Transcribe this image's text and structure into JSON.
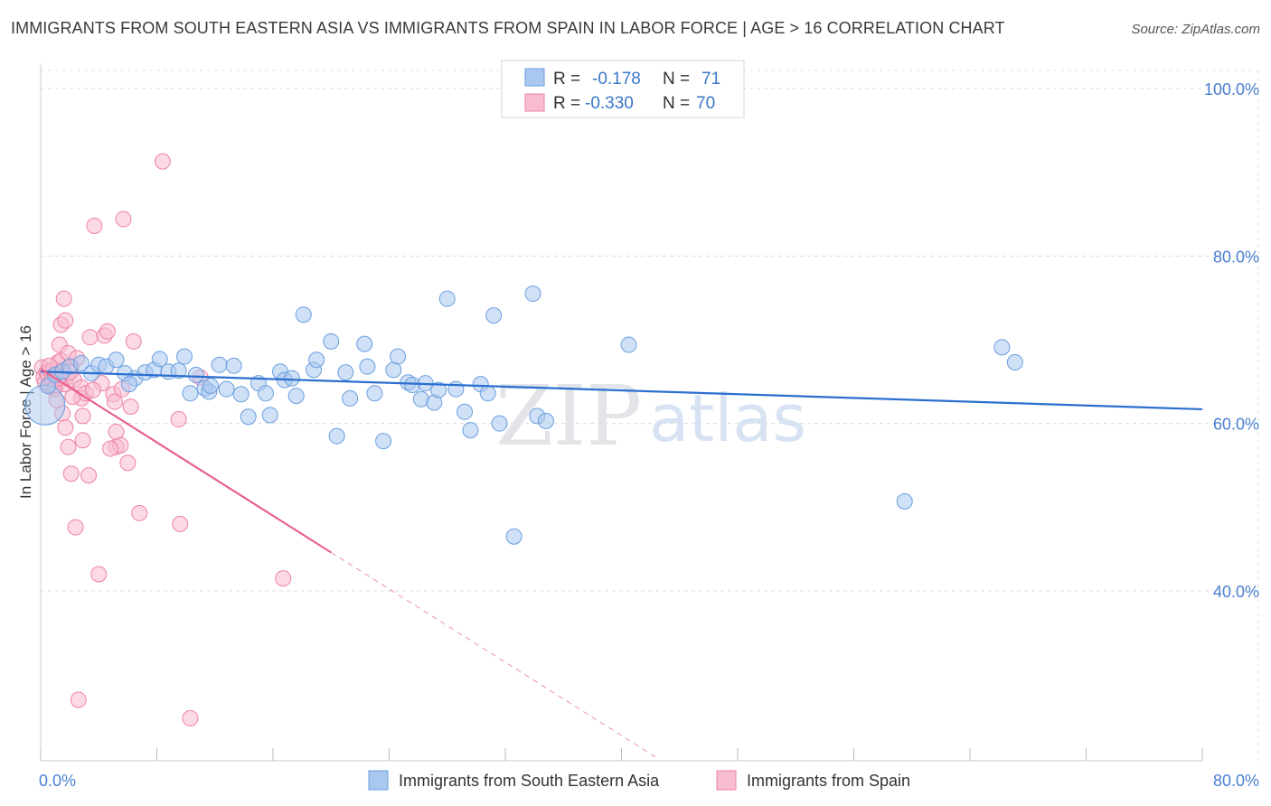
{
  "header": {
    "title": "IMMIGRANTS FROM SOUTH EASTERN ASIA VS IMMIGRANTS FROM SPAIN IN LABOR FORCE | AGE > 16 CORRELATION CHART",
    "source": "Source: ZipAtlas.com"
  },
  "watermark": {
    "zip": "ZIP",
    "atlas": "atlas"
  },
  "legend": {
    "r_label": "R =",
    "n_label": "N =",
    "series1": {
      "r": "-0.178",
      "n": "71"
    },
    "series2": {
      "r": "-0.330",
      "n": "70"
    }
  },
  "colors": {
    "series1_fill": "#aac7ef",
    "series1_stroke": "#6a9fdf",
    "series1_line": "#2b6fcf",
    "series2_fill": "#f7bcd0",
    "series2_stroke": "#ee82a6",
    "series2_line": "#e8618e",
    "grid": "#dcdcdc",
    "tick_label": "#4a7fd0"
  },
  "chart_data": {
    "type": "scatter",
    "title": "IMMIGRANTS FROM SOUTH EASTERN ASIA VS IMMIGRANTS FROM SPAIN IN LABOR FORCE | AGE > 16 CORRELATION CHART",
    "xlabel": "",
    "ylabel": "In Labor Force | Age > 16",
    "xlim": [
      0,
      80
    ],
    "ylim": [
      20,
      102
    ],
    "x_tick_labels": [
      "0.0%",
      "80.0%"
    ],
    "y_ticks": [
      40,
      60,
      80,
      100
    ],
    "y_tick_labels": [
      "40.0%",
      "60.0%",
      "80.0%",
      "100.0%"
    ],
    "series": [
      {
        "name": "Immigrants from South Eastern Asia",
        "r": -0.178,
        "n": 71,
        "trend": {
          "x0": 0,
          "y0": 66.2,
          "x1": 80,
          "y1": 61.7,
          "dashed_to": null
        },
        "points": [
          [
            0.3,
            62.2
          ],
          [
            0.5,
            64.5
          ],
          [
            1.0,
            65.8
          ],
          [
            1.5,
            66.2
          ],
          [
            2.0,
            66.8
          ],
          [
            2.8,
            67.2
          ],
          [
            3.5,
            66.0
          ],
          [
            4.0,
            67.0
          ],
          [
            4.5,
            66.8
          ],
          [
            5.2,
            67.6
          ],
          [
            5.8,
            66.0
          ],
          [
            6.5,
            65.4
          ],
          [
            7.2,
            66.1
          ],
          [
            7.8,
            66.4
          ],
          [
            8.2,
            67.7
          ],
          [
            8.8,
            66.2
          ],
          [
            9.5,
            66.3
          ],
          [
            9.9,
            68.0
          ],
          [
            10.3,
            63.6
          ],
          [
            10.7,
            65.8
          ],
          [
            11.3,
            64.2
          ],
          [
            11.6,
            63.8
          ],
          [
            12.3,
            67.0
          ],
          [
            12.8,
            64.1
          ],
          [
            13.3,
            66.9
          ],
          [
            13.8,
            63.5
          ],
          [
            14.3,
            60.8
          ],
          [
            15.0,
            64.8
          ],
          [
            15.5,
            63.6
          ],
          [
            15.8,
            61.0
          ],
          [
            16.5,
            66.2
          ],
          [
            16.8,
            65.2
          ],
          [
            17.3,
            65.4
          ],
          [
            17.6,
            63.3
          ],
          [
            18.1,
            73.0
          ],
          [
            18.8,
            66.4
          ],
          [
            19.0,
            67.6
          ],
          [
            20.0,
            69.8
          ],
          [
            20.4,
            58.5
          ],
          [
            21.0,
            66.1
          ],
          [
            21.3,
            63.0
          ],
          [
            22.3,
            69.5
          ],
          [
            22.5,
            66.8
          ],
          [
            23.0,
            63.6
          ],
          [
            23.6,
            57.9
          ],
          [
            24.3,
            66.4
          ],
          [
            24.6,
            68.0
          ],
          [
            25.3,
            64.9
          ],
          [
            25.6,
            64.6
          ],
          [
            26.2,
            62.9
          ],
          [
            26.5,
            64.8
          ],
          [
            27.1,
            62.5
          ],
          [
            27.4,
            64.0
          ],
          [
            28.0,
            74.9
          ],
          [
            28.6,
            64.1
          ],
          [
            29.2,
            61.4
          ],
          [
            29.6,
            59.2
          ],
          [
            30.3,
            64.7
          ],
          [
            30.8,
            63.6
          ],
          [
            31.2,
            72.9
          ],
          [
            31.6,
            60.0
          ],
          [
            32.6,
            46.5
          ],
          [
            33.9,
            75.5
          ],
          [
            34.2,
            60.9
          ],
          [
            34.8,
            60.3
          ],
          [
            40.5,
            69.4
          ],
          [
            59.5,
            50.7
          ],
          [
            66.2,
            69.1
          ],
          [
            67.1,
            67.3
          ],
          [
            11.7,
            64.5
          ],
          [
            6.1,
            64.7
          ]
        ]
      },
      {
        "name": "Immigrants from Spain",
        "r": -0.33,
        "n": 70,
        "trend": {
          "x0": 0,
          "y0": 66.5,
          "x1": 20,
          "y1": 44.6,
          "dashed_to": [
            42.5,
            20.0
          ]
        },
        "points": [
          [
            0.1,
            66.7
          ],
          [
            0.2,
            65.5
          ],
          [
            0.3,
            64.9
          ],
          [
            0.4,
            66.1
          ],
          [
            0.5,
            65.8
          ],
          [
            0.6,
            64.6
          ],
          [
            0.7,
            66.3
          ],
          [
            0.8,
            65.3
          ],
          [
            0.9,
            66.5
          ],
          [
            1.0,
            64.3
          ],
          [
            1.1,
            65.9
          ],
          [
            1.2,
            67.3
          ],
          [
            1.3,
            65.1
          ],
          [
            1.4,
            65.7
          ],
          [
            1.5,
            66.4
          ],
          [
            1.6,
            66.0
          ],
          [
            1.7,
            64.7
          ],
          [
            1.8,
            65.6
          ],
          [
            1.4,
            67.5
          ],
          [
            1.3,
            69.4
          ],
          [
            1.4,
            71.8
          ],
          [
            1.6,
            74.9
          ],
          [
            1.7,
            72.3
          ],
          [
            1.9,
            68.4
          ],
          [
            1.5,
            61.2
          ],
          [
            1.7,
            59.5
          ],
          [
            1.9,
            57.2
          ],
          [
            2.1,
            54.0
          ],
          [
            2.4,
            47.6
          ],
          [
            2.6,
            27.0
          ],
          [
            2.1,
            66.8
          ],
          [
            2.3,
            65.2
          ],
          [
            2.5,
            67.8
          ],
          [
            2.8,
            64.3
          ],
          [
            2.8,
            63.0
          ],
          [
            2.9,
            60.9
          ],
          [
            2.9,
            58.0
          ],
          [
            3.1,
            63.6
          ],
          [
            3.3,
            53.8
          ],
          [
            3.4,
            70.3
          ],
          [
            3.7,
            83.6
          ],
          [
            4.0,
            42.0
          ],
          [
            4.2,
            64.8
          ],
          [
            4.4,
            70.5
          ],
          [
            4.6,
            71.0
          ],
          [
            5.0,
            63.5
          ],
          [
            5.1,
            62.6
          ],
          [
            5.2,
            59.0
          ],
          [
            5.2,
            57.2
          ],
          [
            5.5,
            57.4
          ],
          [
            5.6,
            64.1
          ],
          [
            5.7,
            84.4
          ],
          [
            6.0,
            55.3
          ],
          [
            6.2,
            62.0
          ],
          [
            6.4,
            69.8
          ],
          [
            6.8,
            49.3
          ],
          [
            8.4,
            91.3
          ],
          [
            9.5,
            60.5
          ],
          [
            9.6,
            48.0
          ],
          [
            10.3,
            24.8
          ],
          [
            11.0,
            65.5
          ],
          [
            16.7,
            41.5
          ],
          [
            0.6,
            66.9
          ],
          [
            0.9,
            64.1
          ],
          [
            1.2,
            65.4
          ],
          [
            2.0,
            66.1
          ],
          [
            2.2,
            63.2
          ],
          [
            3.6,
            64.0
          ],
          [
            4.8,
            57.0
          ],
          [
            1.1,
            62.8
          ]
        ]
      }
    ]
  },
  "bottom_legend": {
    "series1_label": "Immigrants from South Eastern Asia",
    "series2_label": "Immigrants from Spain"
  }
}
